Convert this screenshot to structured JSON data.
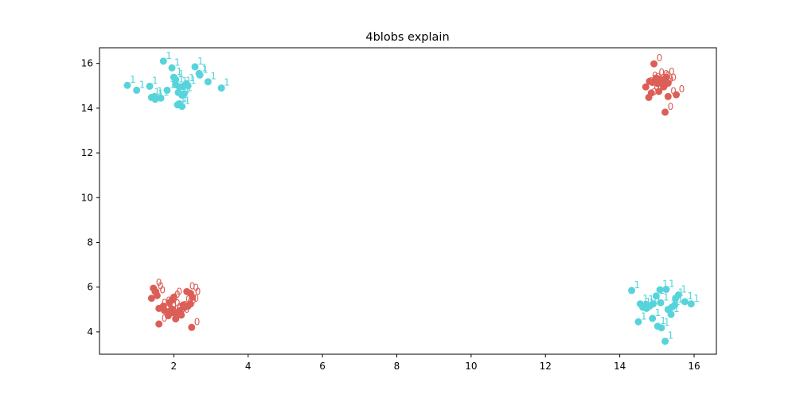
{
  "chart_data": {
    "type": "scatter",
    "title": "4blobs explain",
    "xlabel": "",
    "ylabel": "",
    "xlim": [
      0.0,
      16.6
    ],
    "ylim": [
      3.0,
      16.7
    ],
    "xticks": [
      2,
      4,
      6,
      8,
      10,
      12,
      14,
      16
    ],
    "yticks": [
      4,
      6,
      8,
      10,
      12,
      14,
      16
    ],
    "grid": false,
    "legend": "none",
    "colors": {
      "0": "#db5f57",
      "1": "#57d3db"
    },
    "series": [
      {
        "label": "1",
        "color": "#57d3db",
        "points": [
          [
            1.72,
            16.1
          ],
          [
            1.95,
            15.8
          ],
          [
            2.57,
            15.85
          ],
          [
            2.68,
            15.55
          ],
          [
            2.0,
            15.38
          ],
          [
            2.05,
            15.28
          ],
          [
            2.34,
            15.1
          ],
          [
            2.25,
            14.98
          ],
          [
            1.35,
            14.98
          ],
          [
            0.75,
            15.02
          ],
          [
            1.0,
            14.8
          ],
          [
            2.92,
            15.18
          ],
          [
            3.28,
            14.9
          ],
          [
            1.48,
            14.52
          ],
          [
            1.4,
            14.48
          ],
          [
            1.65,
            14.45
          ],
          [
            1.5,
            14.4
          ],
          [
            1.82,
            14.8
          ],
          [
            2.05,
            15.05
          ],
          [
            2.15,
            14.95
          ],
          [
            2.12,
            14.7
          ],
          [
            2.28,
            14.65
          ],
          [
            2.22,
            14.58
          ],
          [
            2.15,
            14.2
          ],
          [
            2.1,
            14.15
          ],
          [
            2.22,
            14.08
          ],
          [
            2.38,
            15.0
          ],
          [
            2.7,
            15.48
          ],
          [
            14.32,
            5.85
          ],
          [
            15.08,
            5.88
          ],
          [
            15.25,
            5.9
          ],
          [
            14.98,
            5.6
          ],
          [
            15.58,
            5.65
          ],
          [
            15.5,
            5.5
          ],
          [
            14.55,
            5.25
          ],
          [
            14.7,
            5.2
          ],
          [
            14.62,
            5.1
          ],
          [
            14.72,
            5.05
          ],
          [
            14.8,
            5.15
          ],
          [
            14.9,
            5.25
          ],
          [
            15.1,
            5.3
          ],
          [
            15.3,
            5.0
          ],
          [
            15.4,
            5.1
          ],
          [
            15.48,
            5.2
          ],
          [
            15.75,
            5.35
          ],
          [
            15.92,
            5.25
          ],
          [
            15.38,
            4.78
          ],
          [
            14.88,
            4.6
          ],
          [
            14.5,
            4.45
          ],
          [
            15.02,
            4.25
          ],
          [
            15.12,
            4.18
          ],
          [
            15.22,
            3.58
          ]
        ]
      },
      {
        "label": "0",
        "color": "#db5f57",
        "points": [
          [
            14.92,
            15.98
          ],
          [
            14.98,
            15.35
          ],
          [
            15.1,
            15.28
          ],
          [
            15.25,
            15.38
          ],
          [
            14.88,
            15.15
          ],
          [
            14.7,
            14.95
          ],
          [
            14.8,
            15.2
          ],
          [
            15.02,
            15.1
          ],
          [
            15.18,
            14.95
          ],
          [
            15.3,
            15.12
          ],
          [
            15.22,
            15.05
          ],
          [
            15.05,
            14.75
          ],
          [
            14.85,
            14.68
          ],
          [
            14.78,
            14.48
          ],
          [
            15.3,
            14.52
          ],
          [
            15.52,
            14.6
          ],
          [
            15.22,
            13.82
          ],
          [
            15.15,
            15.22
          ],
          [
            1.45,
            5.95
          ],
          [
            1.55,
            5.62
          ],
          [
            1.4,
            5.5
          ],
          [
            1.5,
            5.8
          ],
          [
            2.35,
            5.8
          ],
          [
            2.45,
            5.72
          ],
          [
            2.5,
            5.55
          ],
          [
            2.0,
            5.55
          ],
          [
            1.95,
            5.42
          ],
          [
            1.88,
            5.3
          ],
          [
            1.72,
            5.15
          ],
          [
            1.6,
            5.05
          ],
          [
            1.75,
            4.95
          ],
          [
            1.85,
            4.9
          ],
          [
            2.0,
            4.85
          ],
          [
            2.15,
            4.95
          ],
          [
            2.3,
            5.1
          ],
          [
            2.45,
            5.25
          ],
          [
            2.38,
            5.15
          ],
          [
            2.2,
            4.75
          ],
          [
            2.05,
            4.58
          ],
          [
            1.85,
            4.72
          ],
          [
            1.6,
            4.35
          ],
          [
            2.48,
            4.2
          ],
          [
            2.08,
            4.72
          ],
          [
            1.95,
            5.02
          ],
          [
            2.25,
            5.2
          ]
        ]
      }
    ]
  }
}
